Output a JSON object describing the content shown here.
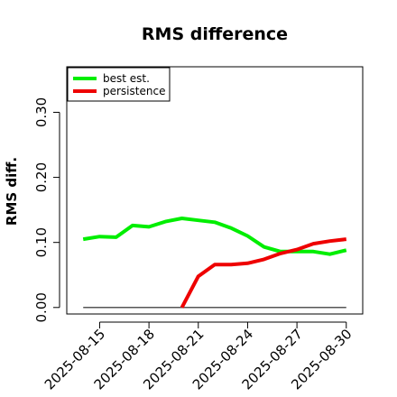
{
  "chart_data": {
    "type": "line",
    "title": "RMS difference",
    "xlabel": "",
    "ylabel": "RMS diff.",
    "x_ticks": [
      "2025-08-15",
      "2025-08-18",
      "2025-08-21",
      "2025-08-24",
      "2025-08-27",
      "2025-08-30"
    ],
    "y_ticks": [
      "0.00",
      "0.10",
      "0.20",
      "0.30"
    ],
    "y_tick_values": [
      0.0,
      0.1,
      0.2,
      0.3
    ],
    "ylim": [
      -0.01,
      0.37
    ],
    "xlim": [
      "2025-08-13",
      "2025-08-31"
    ],
    "grid": false,
    "legend_position": "top-left",
    "series": [
      {
        "name": "best est.",
        "color": "#00ee00",
        "points": [
          [
            "2025-08-14",
            0.105
          ],
          [
            "2025-08-15",
            0.109
          ],
          [
            "2025-08-16",
            0.108
          ],
          [
            "2025-08-17",
            0.126
          ],
          [
            "2025-08-18",
            0.124
          ],
          [
            "2025-08-19",
            0.132
          ],
          [
            "2025-08-20",
            0.137
          ],
          [
            "2025-08-21",
            0.134
          ],
          [
            "2025-08-22",
            0.131
          ],
          [
            "2025-08-23",
            0.122
          ],
          [
            "2025-08-24",
            0.11
          ],
          [
            "2025-08-25",
            0.093
          ],
          [
            "2025-08-26",
            0.086
          ],
          [
            "2025-08-27",
            0.086
          ],
          [
            "2025-08-28",
            0.086
          ],
          [
            "2025-08-29",
            0.082
          ],
          [
            "2025-08-30",
            0.088
          ]
        ]
      },
      {
        "name": "persistence",
        "color": "#ee0000",
        "points": [
          [
            "2025-08-20",
            0.0
          ],
          [
            "2025-08-21",
            0.048
          ],
          [
            "2025-08-22",
            0.066
          ],
          [
            "2025-08-23",
            0.066
          ],
          [
            "2025-08-24",
            0.068
          ],
          [
            "2025-08-25",
            0.074
          ],
          [
            "2025-08-26",
            0.083
          ],
          [
            "2025-08-27",
            0.089
          ],
          [
            "2025-08-28",
            0.098
          ],
          [
            "2025-08-29",
            0.102
          ],
          [
            "2025-08-30",
            0.105
          ]
        ]
      }
    ],
    "reference_line": {
      "color": "#555555",
      "y": 0.0,
      "x_range": [
        "2025-08-14",
        "2025-08-30"
      ]
    }
  }
}
